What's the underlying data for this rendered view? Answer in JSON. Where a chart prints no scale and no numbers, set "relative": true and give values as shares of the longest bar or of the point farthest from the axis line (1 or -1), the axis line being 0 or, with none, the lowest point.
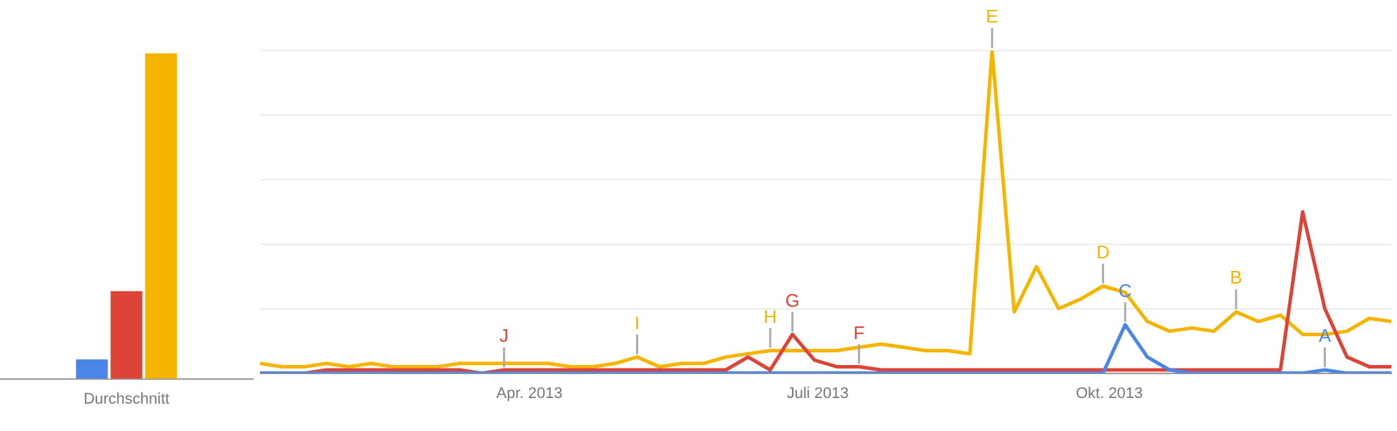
{
  "chart_data": [
    {
      "type": "bar",
      "relative": true,
      "categories": [
        "Durchschnitt"
      ],
      "grid": false,
      "legend": false,
      "series": [
        {
          "color": "#4a86e8",
          "values": [
            0.06
          ]
        },
        {
          "color": "#db4437",
          "values": [
            0.27
          ]
        },
        {
          "color": "#f4b400",
          "values": [
            1
          ]
        }
      ]
    },
    {
      "type": "line",
      "relative": true,
      "grid": "y",
      "legend": false,
      "marker": "none",
      "line_style": "solid",
      "x": [
        "2013-01-06",
        "2013-01-13",
        "2013-01-20",
        "2013-01-27",
        "2013-02-03",
        "2013-02-10",
        "2013-02-17",
        "2013-02-24",
        "2013-03-03",
        "2013-03-10",
        "2013-03-17",
        "2013-03-24",
        "2013-03-31",
        "2013-04-07",
        "2013-04-14",
        "2013-04-21",
        "2013-04-28",
        "2013-05-05",
        "2013-05-12",
        "2013-05-19",
        "2013-05-26",
        "2013-06-02",
        "2013-06-09",
        "2013-06-16",
        "2013-06-23",
        "2013-06-30",
        "2013-07-07",
        "2013-07-14",
        "2013-07-21",
        "2013-07-28",
        "2013-08-04",
        "2013-08-11",
        "2013-08-18",
        "2013-08-25",
        "2013-09-01",
        "2013-09-08",
        "2013-09-15",
        "2013-09-22",
        "2013-09-29",
        "2013-10-06",
        "2013-10-13",
        "2013-10-20",
        "2013-10-27",
        "2013-11-03",
        "2013-11-10",
        "2013-11-17",
        "2013-11-24",
        "2013-12-01",
        "2013-12-08",
        "2013-12-15",
        "2013-12-22",
        "2013-12-29"
      ],
      "xlim": [
        "2013-01-06",
        "2013-12-29"
      ],
      "xticks": [
        {
          "value": "2013-04-01",
          "label": "Apr. 2013"
        },
        {
          "value": "2013-07-01",
          "label": "Juli 2013"
        },
        {
          "value": "2013-10-01",
          "label": "Okt. 2013"
        }
      ],
      "series": [
        {
          "color": "#4a86e8",
          "values": [
            0,
            0,
            0,
            0,
            0,
            0,
            0,
            0,
            0,
            0,
            0,
            0,
            0,
            0,
            0,
            0,
            0,
            0,
            0,
            0,
            0,
            0,
            0,
            0,
            0,
            0,
            0,
            0,
            0,
            0,
            0,
            0,
            0,
            0,
            0,
            0,
            0,
            0,
            0,
            0.15,
            0.05,
            0.01,
            0,
            0,
            0,
            0,
            0,
            0,
            0.01,
            0,
            0,
            0
          ]
        },
        {
          "color": "#db4437",
          "values": [
            0,
            0,
            0,
            0.01,
            0.01,
            0.01,
            0.01,
            0.01,
            0.01,
            0.01,
            0,
            0.01,
            0.01,
            0.01,
            0.01,
            0.01,
            0.01,
            0.01,
            0.01,
            0.01,
            0.01,
            0.01,
            0.05,
            0.01,
            0.12,
            0.04,
            0.02,
            0.02,
            0.01,
            0.01,
            0.01,
            0.01,
            0.01,
            0.01,
            0.01,
            0.01,
            0.01,
            0.01,
            0.01,
            0.01,
            0.01,
            0.01,
            0.01,
            0.01,
            0.01,
            0.01,
            0.01,
            0.5,
            0.2,
            0.05,
            0.02,
            0.02
          ]
        },
        {
          "color": "#f4b400",
          "values": [
            0.03,
            0.02,
            0.02,
            0.03,
            0.02,
            0.03,
            0.02,
            0.02,
            0.02,
            0.03,
            0.03,
            0.03,
            0.03,
            0.03,
            0.02,
            0.02,
            0.03,
            0.05,
            0.02,
            0.03,
            0.03,
            0.05,
            0.06,
            0.07,
            0.07,
            0.07,
            0.07,
            0.08,
            0.09,
            0.08,
            0.07,
            0.07,
            0.06,
            1,
            0.19,
            0.33,
            0.2,
            0.23,
            0.27,
            0.25,
            0.16,
            0.13,
            0.14,
            0.13,
            0.19,
            0.16,
            0.18,
            0.12,
            0.12,
            0.13,
            0.17,
            0.16
          ]
        }
      ],
      "annotations": [
        {
          "text": "J",
          "x": "2013-03-24",
          "y": 0.01
        },
        {
          "text": "I",
          "x": "2013-05-05",
          "y": 0.05
        },
        {
          "text": "H",
          "x": "2013-06-16",
          "y": 0.07
        },
        {
          "text": "G",
          "x": "2013-06-23",
          "y": 0.12
        },
        {
          "text": "F",
          "x": "2013-07-14",
          "y": 0.02
        },
        {
          "text": "E",
          "x": "2013-08-25",
          "y": 1
        },
        {
          "text": "D",
          "x": "2013-09-29",
          "y": 0.27
        },
        {
          "text": "C",
          "x": "2013-10-06",
          "y": 0.15
        },
        {
          "text": "B",
          "x": "2013-11-10",
          "y": 0.19
        },
        {
          "text": "A",
          "x": "2013-12-08",
          "y": 0.01
        }
      ]
    }
  ]
}
